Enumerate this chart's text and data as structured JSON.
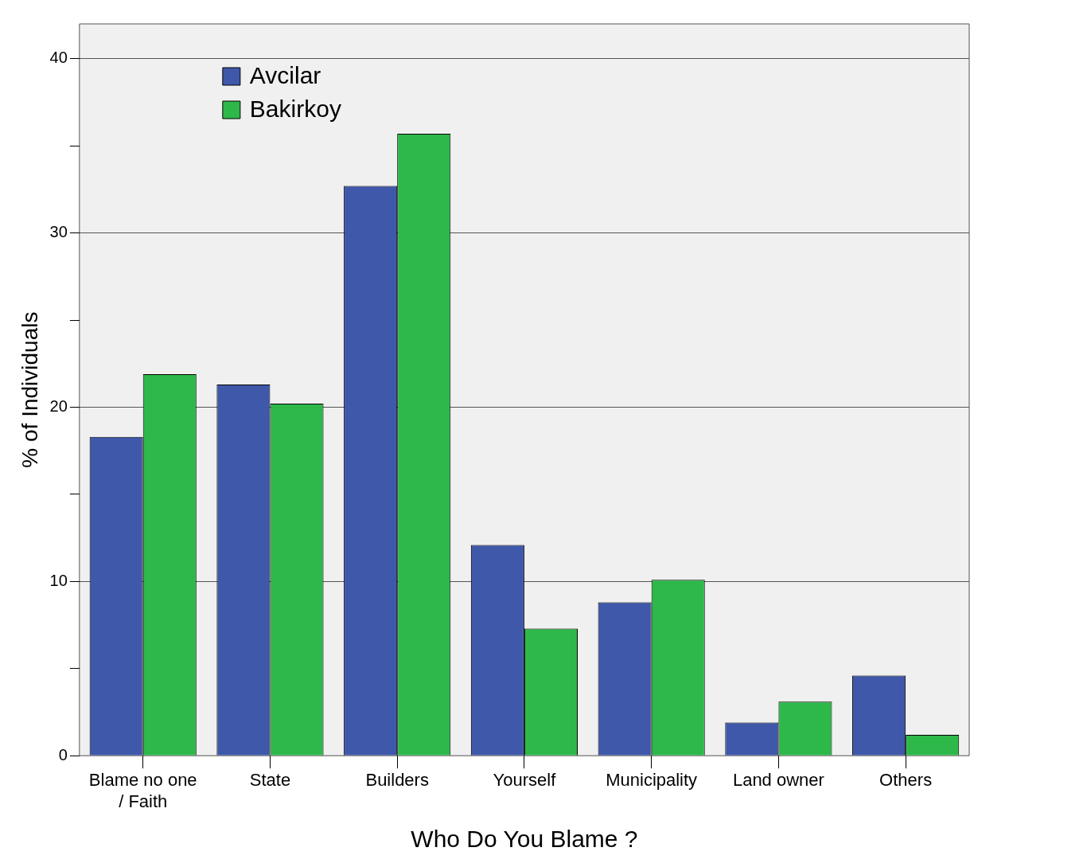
{
  "chart_data": {
    "type": "bar",
    "xlabel": "Who Do You Blame ?",
    "ylabel": "% of Individuals",
    "categories": [
      "Blame no one / Faith",
      "State",
      "Builders",
      "Yourself",
      "Municipality",
      "Land owner",
      "Others"
    ],
    "series": [
      {
        "name": "Avcilar",
        "color": "#3f58aa",
        "values": [
          18.3,
          21.3,
          32.7,
          12.1,
          8.8,
          1.9,
          4.6
        ]
      },
      {
        "name": "Bakirkoy",
        "color": "#2eb84a",
        "values": [
          21.9,
          20.2,
          35.7,
          7.3,
          10.1,
          3.1,
          1.2
        ]
      }
    ],
    "ylim": [
      0,
      42
    ],
    "yticks": [
      0,
      {
        "value": 5,
        "label": null
      },
      10,
      {
        "value": 15,
        "label": null
      },
      20,
      {
        "value": 25,
        "label": null
      },
      30,
      {
        "value": 35,
        "label": null
      },
      40
    ],
    "grid": "y",
    "legend": "top left"
  }
}
